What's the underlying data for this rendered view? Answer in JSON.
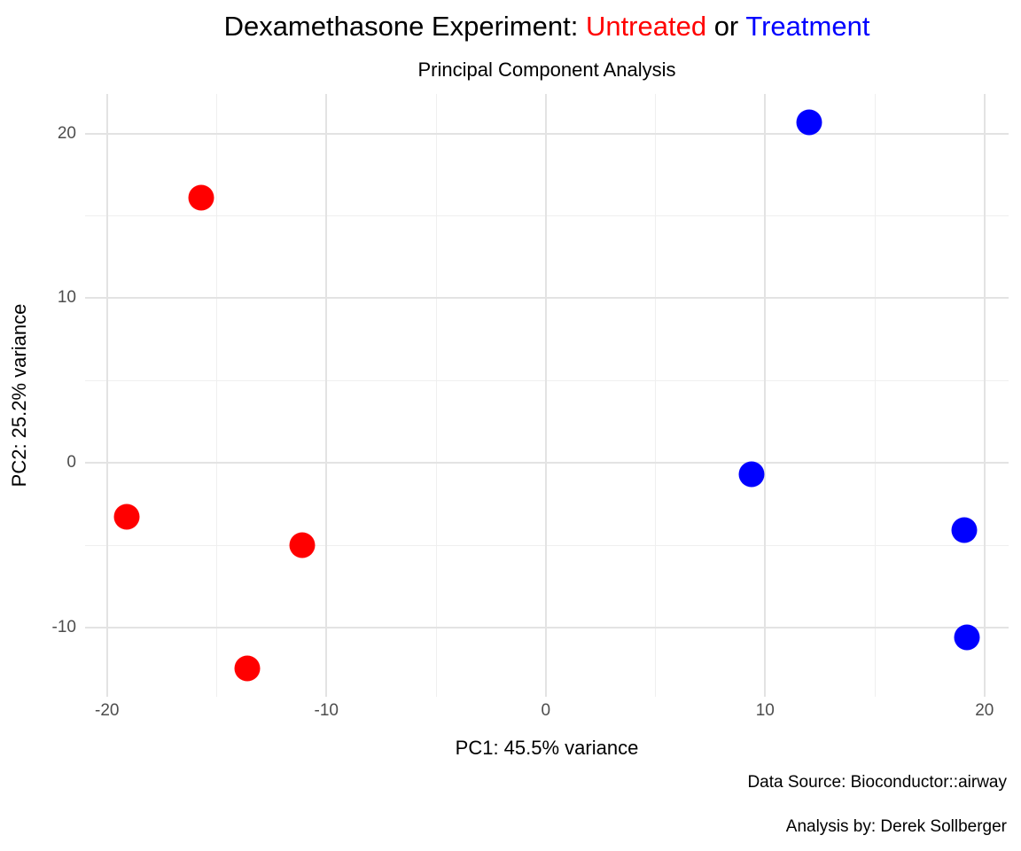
{
  "title": {
    "part1": "Dexamethasone Experiment: ",
    "untreated_label": "Untreated",
    "part2": " or ",
    "treatment_label": "Treatment"
  },
  "subtitle": "Principal Component Analysis",
  "axes": {
    "x_title": "PC1: 45.5% variance",
    "y_title": "PC2: 25.2% variance",
    "x_tick_labels": [
      "-20",
      "-10",
      "0",
      "10",
      "20"
    ],
    "y_tick_labels": [
      "-10",
      "0",
      "10",
      "20"
    ]
  },
  "caption": {
    "line1": "Data Source: Bioconductor::airway",
    "line2": "Analysis by: Derek Sollberger"
  },
  "colors": {
    "untreated": "#FF0000",
    "treatment": "#0000FF",
    "title_text": "#000000",
    "tick_text": "#4D4D4D",
    "grid_major": "#E3E3E3",
    "grid_minor": "#EFEFEF",
    "background": "#FFFFFF"
  },
  "chart_data": {
    "type": "scatter",
    "title": "Dexamethasone Experiment: Untreated or Treatment",
    "subtitle": "Principal Component Analysis",
    "xlabel": "PC1: 45.5% variance",
    "ylabel": "PC2: 25.2% variance",
    "xlim": [
      -21.0,
      21.1
    ],
    "ylim": [
      -14.2,
      22.4
    ],
    "x_major_ticks": [
      -20,
      -10,
      0,
      10,
      20
    ],
    "y_major_ticks": [
      -10,
      0,
      10,
      20
    ],
    "x_minor_ticks": [
      -15,
      -5,
      5,
      15
    ],
    "y_minor_ticks": [
      -5,
      5,
      15
    ],
    "grid": "major+minor",
    "legend_position": "none",
    "series": [
      {
        "name": "Untreated",
        "color": "#FF0000",
        "points": [
          {
            "x": -15.7,
            "y": 16.1
          },
          {
            "x": -19.1,
            "y": -3.3
          },
          {
            "x": -11.1,
            "y": -5.0
          },
          {
            "x": -13.6,
            "y": -12.5
          }
        ]
      },
      {
        "name": "Treatment",
        "color": "#0000FF",
        "points": [
          {
            "x": 12.0,
            "y": 20.7
          },
          {
            "x": 9.4,
            "y": -0.7
          },
          {
            "x": 19.1,
            "y": -4.1
          },
          {
            "x": 19.2,
            "y": -10.6
          }
        ]
      }
    ]
  }
}
